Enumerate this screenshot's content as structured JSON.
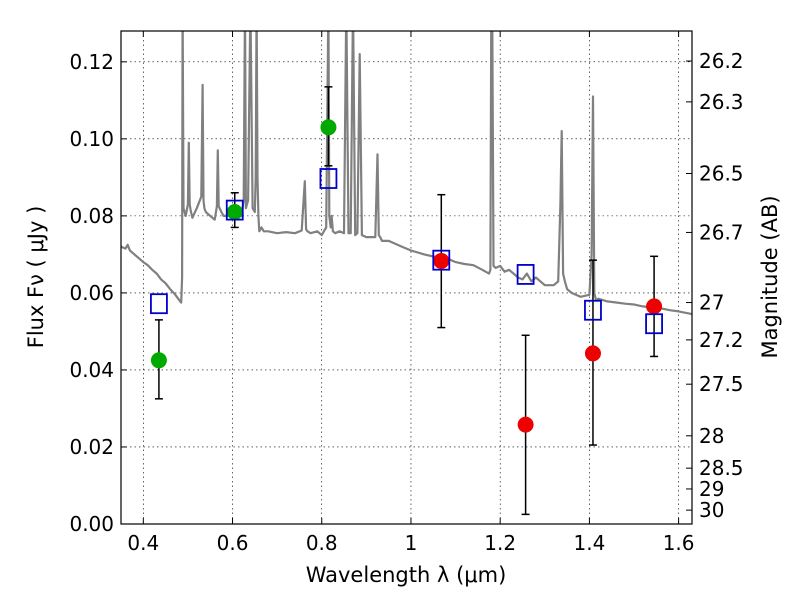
{
  "chart_data": {
    "type": "scatter",
    "xlabel": "Wavelength  λ (μm)",
    "ylabel_left": "Flux  Fν  ( μJy )",
    "ylabel_right": "Magnitude (AB)",
    "xlim": [
      0.35,
      1.63
    ],
    "ylim": [
      0.0,
      0.128
    ],
    "grid": true,
    "x_ticks": [
      0.4,
      0.6,
      0.8,
      1.0,
      1.2,
      1.4,
      1.6
    ],
    "x_tick_labels": [
      "0.4",
      "0.6",
      "0.8",
      "1",
      "1.2",
      "1.4",
      "1.6"
    ],
    "y_ticks": [
      0.0,
      0.02,
      0.04,
      0.06,
      0.08,
      0.1,
      0.12
    ],
    "y_tick_labels": [
      "0.00",
      "0.02",
      "0.04",
      "0.06",
      "0.08",
      "0.10",
      "0.12"
    ],
    "right_ticks": [
      {
        "flux": 0.1202,
        "label": "26.2"
      },
      {
        "flux": 0.1096,
        "label": "26.3"
      },
      {
        "flux": 0.091,
        "label": "26.5"
      },
      {
        "flux": 0.0757,
        "label": "26.7"
      },
      {
        "flux": 0.0575,
        "label": "27"
      },
      {
        "flux": 0.0478,
        "label": "27.2"
      },
      {
        "flux": 0.0363,
        "label": "27.5"
      },
      {
        "flux": 0.0229,
        "label": "28"
      },
      {
        "flux": 0.0145,
        "label": "28.5"
      },
      {
        "flux": 0.0091,
        "label": "29"
      },
      {
        "flux": 0.0036,
        "label": "30"
      }
    ],
    "series": [
      {
        "marker": "circle",
        "color": "#00aa00",
        "points": [
          {
            "x": 0.435,
            "y": 0.0425,
            "err_low": 0.0325,
            "err_high": 0.053
          },
          {
            "x": 0.605,
            "y": 0.081,
            "err_low": 0.077,
            "err_high": 0.086
          },
          {
            "x": 0.815,
            "y": 0.103,
            "err_low": 0.093,
            "err_high": 0.1135
          }
        ]
      },
      {
        "marker": "circle",
        "color": "#ee0000",
        "points": [
          {
            "x": 1.068,
            "y": 0.0683,
            "err_low": 0.051,
            "err_high": 0.0855
          },
          {
            "x": 1.257,
            "y": 0.0258,
            "err_low": 0.0025,
            "err_high": 0.049
          },
          {
            "x": 1.408,
            "y": 0.0443,
            "err_low": 0.0205,
            "err_high": 0.0685
          },
          {
            "x": 1.545,
            "y": 0.0565,
            "err_low": 0.0435,
            "err_high": 0.0695
          }
        ]
      },
      {
        "marker": "open-square",
        "color": "#0000cc",
        "points": [
          {
            "x": 0.435,
            "y": 0.0572
          },
          {
            "x": 0.605,
            "y": 0.0815
          },
          {
            "x": 0.815,
            "y": 0.0897
          },
          {
            "x": 1.068,
            "y": 0.0685
          },
          {
            "x": 1.257,
            "y": 0.0648
          },
          {
            "x": 1.408,
            "y": 0.0555
          },
          {
            "x": 1.545,
            "y": 0.052
          }
        ]
      }
    ],
    "spectrum": {
      "color": "#808080",
      "x": [
        0.35,
        0.36,
        0.365,
        0.37,
        0.38,
        0.39,
        0.4,
        0.41,
        0.42,
        0.43,
        0.44,
        0.45,
        0.46,
        0.47,
        0.48,
        0.485,
        0.487,
        0.488,
        0.49,
        0.495,
        0.5,
        0.502,
        0.504,
        0.506,
        0.51,
        0.52,
        0.53,
        0.533,
        0.535,
        0.537,
        0.54,
        0.55,
        0.56,
        0.565,
        0.567,
        0.569,
        0.575,
        0.58,
        0.59,
        0.6,
        0.61,
        0.62,
        0.625,
        0.628,
        0.63,
        0.635,
        0.64,
        0.645,
        0.65,
        0.652,
        0.654,
        0.656,
        0.658,
        0.66,
        0.665,
        0.67,
        0.68,
        0.7,
        0.72,
        0.74,
        0.755,
        0.762,
        0.765,
        0.768,
        0.775,
        0.79,
        0.8,
        0.81,
        0.815,
        0.817,
        0.82,
        0.822,
        0.825,
        0.83,
        0.84,
        0.85,
        0.855,
        0.86,
        0.865,
        0.87,
        0.875,
        0.88,
        0.885,
        0.89,
        0.9,
        0.92,
        0.925,
        0.928,
        0.931,
        0.935,
        0.95,
        0.98,
        1.0,
        1.03,
        1.06,
        1.08,
        1.1,
        1.12,
        1.14,
        1.16,
        1.175,
        1.178,
        1.18,
        1.182,
        1.185,
        1.19,
        1.2,
        1.21,
        1.22,
        1.23,
        1.24,
        1.25,
        1.26,
        1.27,
        1.28,
        1.3,
        1.32,
        1.33,
        1.335,
        1.338,
        1.341,
        1.345,
        1.35,
        1.36,
        1.38,
        1.4,
        1.405,
        1.408,
        1.411,
        1.415,
        1.42,
        1.44,
        1.46,
        1.48,
        1.5,
        1.52,
        1.54,
        1.56,
        1.58,
        1.6,
        1.63
      ],
      "y": [
        0.072,
        0.0715,
        0.0725,
        0.071,
        0.07,
        0.069,
        0.068,
        0.0672,
        0.066,
        0.065,
        0.0635,
        0.0625,
        0.061,
        0.0598,
        0.0582,
        0.0575,
        0.064,
        0.135,
        0.082,
        0.08,
        0.083,
        0.099,
        0.083,
        0.0815,
        0.0795,
        0.082,
        0.085,
        0.114,
        0.084,
        0.082,
        0.081,
        0.08,
        0.079,
        0.0825,
        0.097,
        0.0825,
        0.081,
        0.08,
        0.08,
        0.0805,
        0.081,
        0.08,
        0.084,
        0.135,
        0.082,
        0.084,
        0.135,
        0.082,
        0.081,
        0.09,
        0.135,
        0.09,
        0.08,
        0.076,
        0.077,
        0.076,
        0.076,
        0.0755,
        0.0758,
        0.0755,
        0.0762,
        0.089,
        0.0765,
        0.076,
        0.0755,
        0.076,
        0.075,
        0.077,
        0.135,
        0.08,
        0.077,
        0.08,
        0.076,
        0.0755,
        0.076,
        0.0755,
        0.135,
        0.0755,
        0.0755,
        0.135,
        0.075,
        0.0755,
        0.122,
        0.075,
        0.0745,
        0.0745,
        0.096,
        0.075,
        0.0745,
        0.0735,
        0.0735,
        0.072,
        0.071,
        0.07,
        0.0692,
        0.069,
        0.068,
        0.0675,
        0.0672,
        0.066,
        0.065,
        0.066,
        0.135,
        0.135,
        0.067,
        0.0665,
        0.067,
        0.0655,
        0.066,
        0.065,
        0.064,
        0.0635,
        0.065,
        0.063,
        0.064,
        0.062,
        0.062,
        0.063,
        0.083,
        0.102,
        0.065,
        0.063,
        0.061,
        0.06,
        0.059,
        0.0595,
        0.07,
        0.111,
        0.06,
        0.058,
        0.0585,
        0.0578,
        0.0575,
        0.0572,
        0.057,
        0.0565,
        0.0562,
        0.056,
        0.0555,
        0.0552,
        0.0545
      ]
    }
  }
}
